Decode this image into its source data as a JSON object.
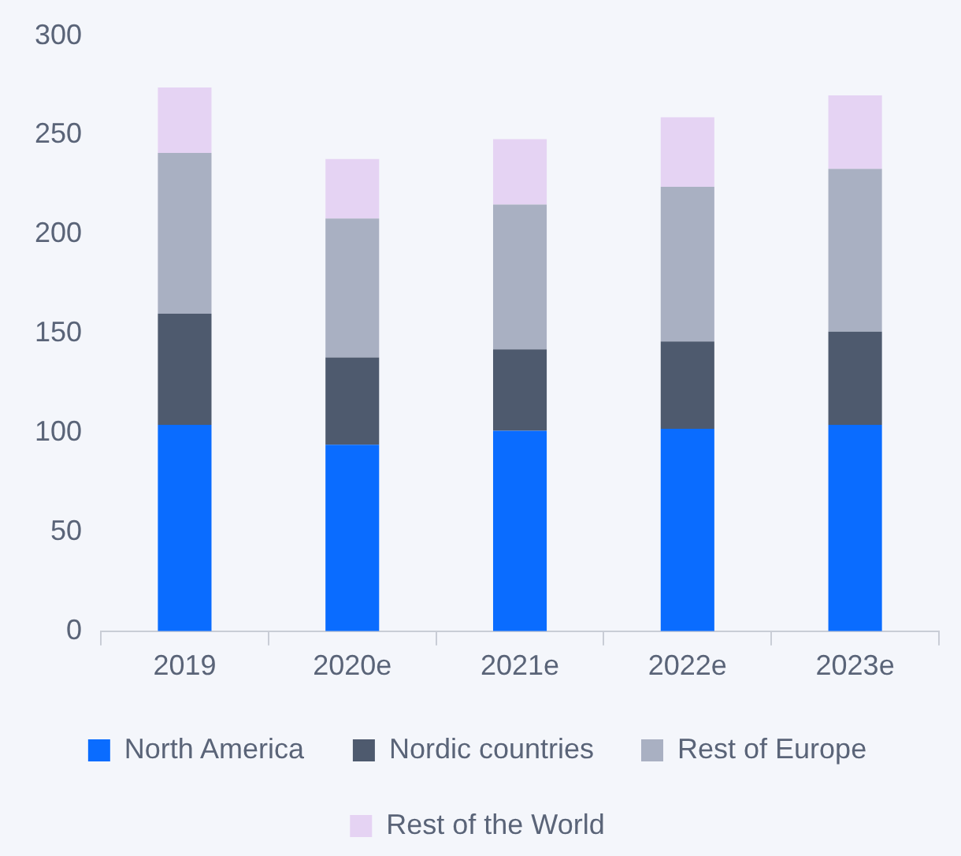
{
  "chart_data": {
    "type": "bar",
    "stacked": true,
    "categories": [
      "2019",
      "2020e",
      "2021e",
      "2022e",
      "2023e"
    ],
    "series": [
      {
        "name": "North America",
        "color": "#0a6cff",
        "values": [
          104,
          94,
          101,
          102,
          104
        ]
      },
      {
        "name": "Nordic countries",
        "color": "#4e5a6e",
        "values": [
          56,
          44,
          41,
          44,
          47
        ]
      },
      {
        "name": "Rest of Europe",
        "color": "#a9b0c2",
        "values": [
          81,
          70,
          73,
          78,
          82
        ]
      },
      {
        "name": "Rest of the World",
        "color": "#e5d3f3",
        "values": [
          33,
          30,
          33,
          35,
          37
        ]
      }
    ],
    "ylim": [
      0,
      300
    ],
    "yticks": [
      0,
      50,
      100,
      150,
      200,
      250,
      300
    ],
    "grid": false,
    "legend": "bottom"
  }
}
